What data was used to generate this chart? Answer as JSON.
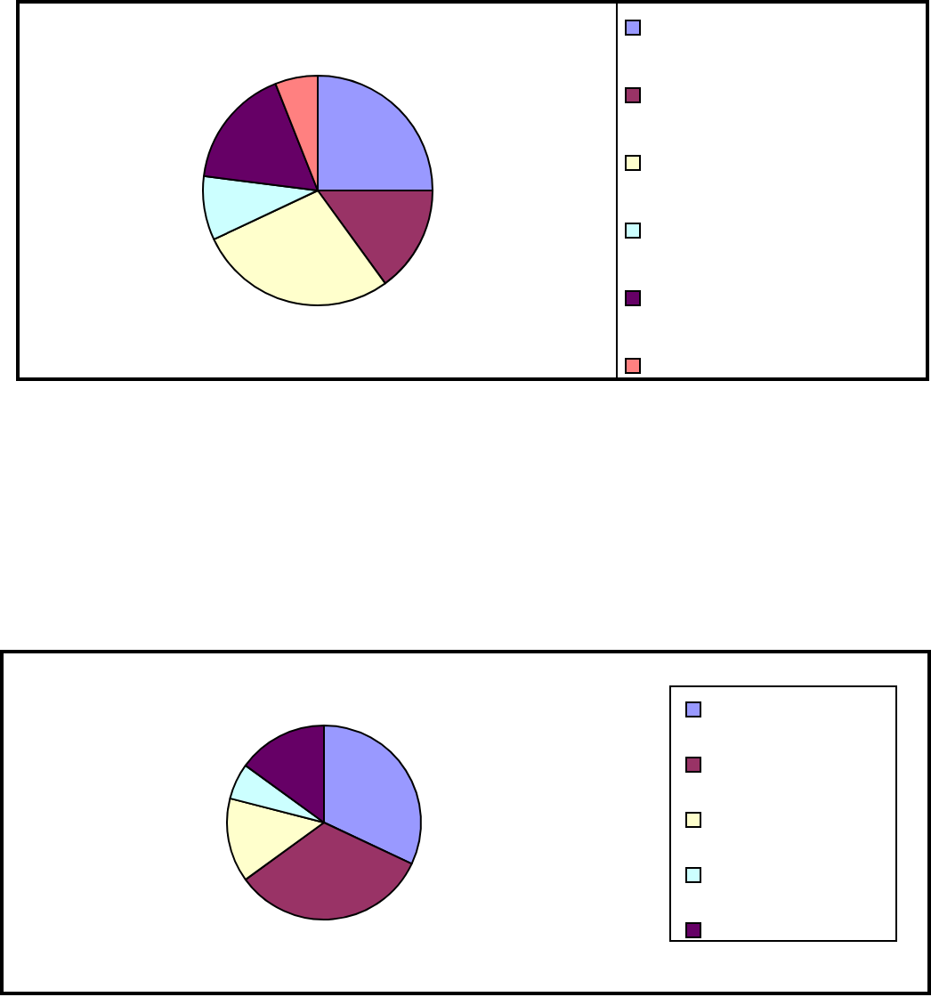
{
  "chart_data": [
    {
      "type": "pie",
      "categories": [
        null,
        null,
        null,
        null,
        null,
        null
      ],
      "values": [
        25,
        15,
        28,
        9,
        17,
        6
      ],
      "colors": [
        "#9999ff",
        "#993366",
        "#ffffcc",
        "#ccffff",
        "#660066",
        "#ff8080"
      ]
    },
    {
      "type": "pie",
      "categories": [
        null,
        null,
        null,
        null,
        null
      ],
      "values": [
        32,
        33,
        14,
        6,
        15
      ],
      "colors": [
        "#9999ff",
        "#993366",
        "#ffffcc",
        "#ccffff",
        "#660066"
      ]
    }
  ]
}
